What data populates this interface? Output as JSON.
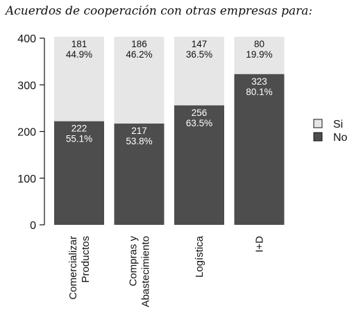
{
  "chart_data": {
    "type": "bar",
    "stacked": true,
    "title": "Acuerdos de cooperación con otras empresas para:",
    "categories": [
      [
        "Comercializar",
        "Productos"
      ],
      [
        "Compras y",
        "Abastecimiento"
      ],
      [
        "Logística"
      ],
      [
        "I+D"
      ]
    ],
    "series": [
      {
        "name": "No",
        "values": [
          222,
          217,
          256,
          323
        ],
        "percent_labels": [
          "55.1%",
          "53.8%",
          "63.5%",
          "80.1%"
        ],
        "color": "#4d4d4d"
      },
      {
        "name": "Si",
        "values": [
          181,
          186,
          147,
          80
        ],
        "percent_labels": [
          "44.9%",
          "46.2%",
          "36.5%",
          "19.9%"
        ],
        "color": "#e6e6e6"
      }
    ],
    "ylim": [
      0,
      400
    ],
    "yticks": [
      0,
      100,
      200,
      300,
      400
    ],
    "legend": [
      {
        "name": "Si",
        "color": "#e6e6e6"
      },
      {
        "name": "No",
        "color": "#4d4d4d"
      }
    ],
    "legend_position": "right",
    "grid": false
  }
}
